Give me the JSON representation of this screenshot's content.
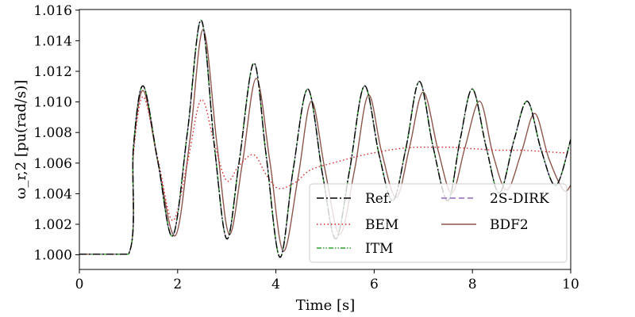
{
  "chart_data": {
    "type": "line",
    "xlabel": "Time [s]",
    "ylabel": "ω_r,2 [pu(rad/s)]",
    "xlim": [
      0,
      10
    ],
    "ylim": [
      0.999,
      1.016
    ],
    "xticks": [
      "0",
      "2",
      "4",
      "6",
      "8",
      "10"
    ],
    "yticks": [
      "1.000",
      "1.002",
      "1.004",
      "1.006",
      "1.008",
      "1.010",
      "1.012",
      "1.014",
      "1.016"
    ],
    "legend_position": "lower-right",
    "series": [
      {
        "name": "Ref.",
        "color": "#000000",
        "dash": "dashdot",
        "x": [
          0,
          1.0,
          1.1,
          1.3,
          1.6,
          1.9,
          2.2,
          2.48,
          2.75,
          3.0,
          3.25,
          3.55,
          3.8,
          4.08,
          4.35,
          4.65,
          4.95,
          5.22,
          5.5,
          5.8,
          6.1,
          6.38,
          6.65,
          6.92,
          7.2,
          7.5,
          7.75,
          8.0,
          8.28,
          8.55,
          8.85,
          9.12,
          9.4,
          9.7,
          10.0
        ],
        "values": [
          1.0,
          1.0,
          1.007,
          1.011,
          1.006,
          1.0012,
          1.008,
          1.0153,
          1.007,
          1.001,
          1.006,
          1.0125,
          1.0065,
          0.9998,
          1.0055,
          1.0108,
          1.0052,
          1.001,
          1.0055,
          1.011,
          1.0065,
          1.0035,
          1.007,
          1.0113,
          1.007,
          1.0035,
          1.0075,
          1.0108,
          1.007,
          1.004,
          1.0075,
          1.01,
          1.0068,
          1.0045,
          1.0075
        ]
      },
      {
        "name": "BEM",
        "color": "#d62728",
        "dash": "dotted",
        "x": [
          0,
          1.0,
          1.1,
          1.3,
          1.6,
          1.9,
          2.2,
          2.48,
          2.75,
          3.0,
          3.25,
          3.55,
          3.8,
          4.05,
          4.4,
          4.7,
          5.2,
          5.8,
          6.5,
          7.0,
          7.5,
          8.0,
          8.5,
          9.0,
          9.5,
          10.0
        ],
        "values": [
          1.0,
          1.0,
          1.0065,
          1.0103,
          1.0062,
          1.0022,
          1.006,
          1.0101,
          1.0072,
          1.0048,
          1.0058,
          1.0065,
          1.0052,
          1.0043,
          1.0047,
          1.0055,
          1.006,
          1.0065,
          1.0069,
          1.007,
          1.007,
          1.0069,
          1.0068,
          1.0068,
          1.0067,
          1.0066
        ]
      },
      {
        "name": "ITM",
        "color": "#2ca02c",
        "dash": "dashdotdot",
        "x": [
          0,
          1.0,
          1.1,
          1.3,
          1.6,
          1.9,
          2.2,
          2.48,
          2.75,
          3.0,
          3.25,
          3.55,
          3.8,
          4.08,
          4.35,
          4.65,
          4.95,
          5.22,
          5.5,
          5.8,
          6.1,
          6.38,
          6.65,
          6.92,
          7.2,
          7.5,
          7.75,
          8.0,
          8.28,
          8.55,
          8.85,
          9.12,
          9.4,
          9.7,
          10.0
        ],
        "values": [
          1.0,
          1.0,
          1.007,
          1.011,
          1.006,
          1.0012,
          1.008,
          1.0153,
          1.007,
          1.001,
          1.006,
          1.0125,
          1.0065,
          0.9998,
          1.0055,
          1.0108,
          1.0052,
          1.001,
          1.0055,
          1.011,
          1.0065,
          1.0035,
          1.007,
          1.0113,
          1.007,
          1.0035,
          1.0075,
          1.0108,
          1.007,
          1.004,
          1.0075,
          1.01,
          1.0068,
          1.0045,
          1.0075
        ]
      },
      {
        "name": "2S-DIRK",
        "color": "#9467bd",
        "dash": "dashed",
        "x": [
          0,
          1.0,
          1.1,
          1.3,
          1.6,
          1.9,
          2.2,
          2.48,
          2.75,
          3.0,
          3.25,
          3.55,
          3.8,
          4.08,
          4.35,
          4.65,
          4.95,
          5.22,
          5.5,
          5.8,
          6.1,
          6.38,
          6.65,
          6.92,
          7.2,
          7.5,
          7.75,
          8.0,
          8.28,
          8.55,
          8.85,
          9.12,
          9.4,
          9.7,
          10.0
        ],
        "values": [
          1.0,
          1.0,
          1.007,
          1.011,
          1.006,
          1.0012,
          1.008,
          1.0153,
          1.007,
          1.001,
          1.006,
          1.0125,
          1.0065,
          0.9998,
          1.0055,
          1.0108,
          1.0052,
          1.001,
          1.0055,
          1.011,
          1.0065,
          1.0035,
          1.007,
          1.0113,
          1.007,
          1.0035,
          1.0075,
          1.0108,
          1.007,
          1.004,
          1.0075,
          1.01,
          1.0068,
          1.0045,
          1.0075
        ]
      },
      {
        "name": "BDF2",
        "color": "#8c564b",
        "dash": "solid",
        "x": [
          0,
          1.0,
          1.1,
          1.3,
          1.6,
          1.95,
          2.25,
          2.52,
          2.8,
          3.05,
          3.32,
          3.6,
          3.88,
          4.15,
          4.45,
          4.72,
          5.0,
          5.3,
          5.6,
          5.88,
          6.15,
          6.45,
          6.72,
          7.0,
          7.3,
          7.58,
          7.85,
          8.15,
          8.42,
          8.7,
          9.0,
          9.27,
          9.55,
          9.85,
          10.0
        ],
        "values": [
          1.0,
          1.0,
          1.0068,
          1.0107,
          1.006,
          1.0012,
          1.0075,
          1.0147,
          1.0072,
          1.0013,
          1.006,
          1.0115,
          1.006,
          1.0002,
          1.005,
          1.01,
          1.0055,
          1.0013,
          1.0055,
          1.0104,
          1.0067,
          1.0037,
          1.007,
          1.0106,
          1.0068,
          1.004,
          1.007,
          1.01,
          1.0065,
          1.0042,
          1.0067,
          1.0092,
          1.0063,
          1.0042,
          1.0045
        ]
      }
    ]
  }
}
